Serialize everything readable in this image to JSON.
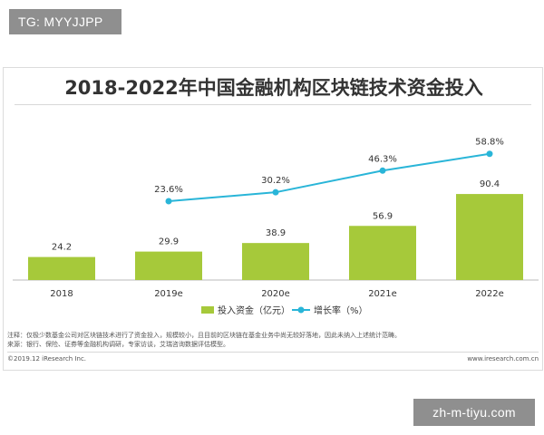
{
  "watermark_top": "TG: MYYJJPP",
  "watermark_bottom": "zh-m-tiyu.com",
  "colors": {
    "bar": "#a6c93a",
    "line": "#29b5d8",
    "text": "#333333"
  },
  "chart_data": {
    "type": "bar",
    "title": "2018-2022年中国金融机构区块链技术资金投入",
    "categories": [
      "2018",
      "2019e",
      "2020e",
      "2021e",
      "2022e"
    ],
    "series": [
      {
        "name": "投入资金（亿元）",
        "type": "bar",
        "values": [
          24.2,
          29.9,
          38.9,
          56.9,
          90.4
        ]
      },
      {
        "name": "增长率（%）",
        "type": "line",
        "values": [
          null,
          23.6,
          30.2,
          46.3,
          58.8
        ]
      }
    ],
    "value_labels": [
      "24.2",
      "29.9",
      "38.9",
      "56.9",
      "90.4"
    ],
    "growth_labels": [
      "",
      "23.6%",
      "30.2%",
      "46.3%",
      "58.8%"
    ],
    "legend_position": "bottom",
    "grid": false
  },
  "notes": {
    "note": "注释：仅极少数基金公司对区块链技术进行了资金投入，规模较小，且目前的区块链在基金业务中尚无较好落地，因此未纳入上述统计范畴。",
    "source": "来源：银行、保险、证券等金融机构调研，专家访谈，艾瑞咨询数据评估模型。"
  },
  "footer": {
    "copyright": "©2019.12 iResearch Inc.",
    "website": "www.iresearch.com.cn"
  }
}
